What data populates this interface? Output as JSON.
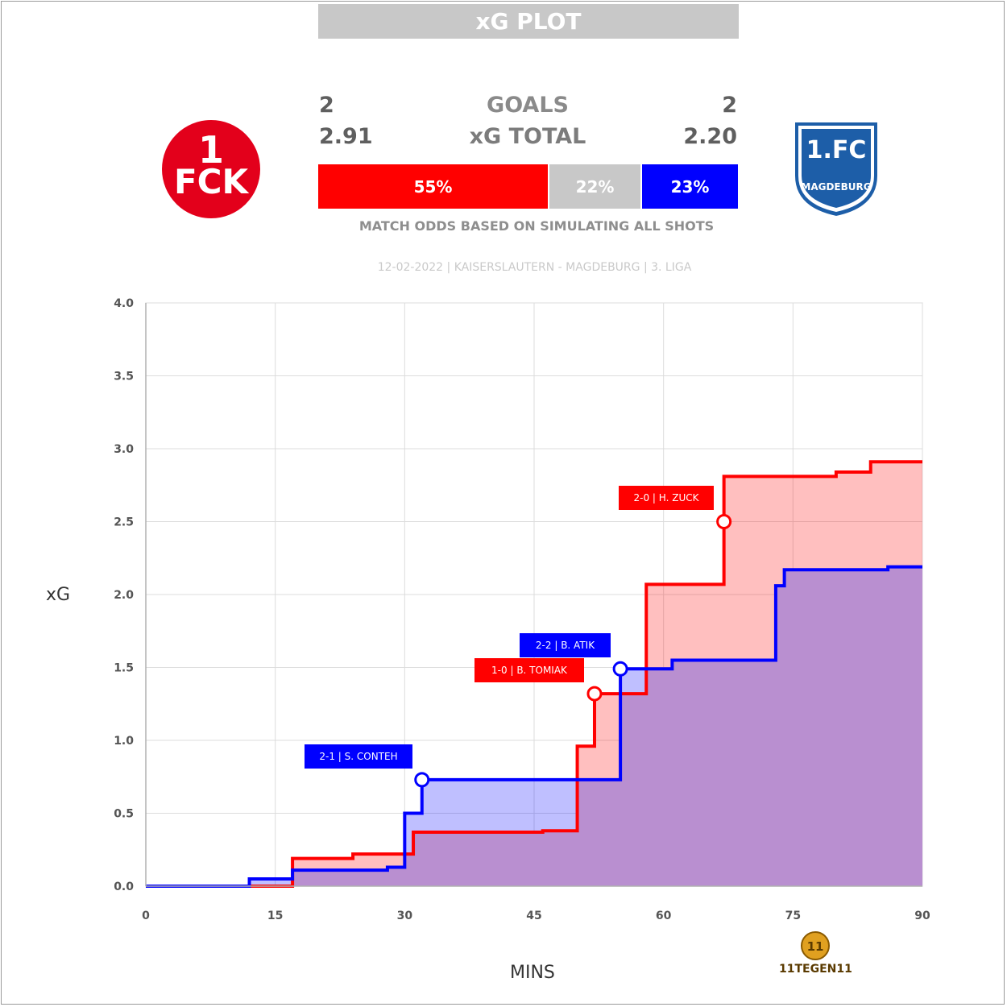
{
  "header": {
    "title": "xG PLOT",
    "home_goals": "2",
    "away_goals": "2",
    "goals_label": "GOALS",
    "home_xg": "2.91",
    "away_xg": "2.20",
    "xg_label": "xG TOTAL",
    "odds_note": "MATCH ODDS BASED ON SIMULATING ALL SHOTS",
    "match_info": "12-02-2022 | KAISERSLAUTERN - MAGDEBURG | 3. LIGA"
  },
  "odds": {
    "home_win": "55%",
    "draw": "22%",
    "away_win": "23%"
  },
  "logos": {
    "home_text_top": "1",
    "home_text_mid": "FCK",
    "away_text_top": "1.FC",
    "away_text_bottom": "MAGDEBURG",
    "brand_text": "11TEGEN11"
  },
  "colors": {
    "home": "#ff0000",
    "away": "#0000ff",
    "draw": "#c8c8c8",
    "home_fill": "rgba(255,0,0,0.25)",
    "away_fill": "rgba(0,0,255,0.25)",
    "overlap_fill": "#b98fd0"
  },
  "chart_data": {
    "type": "line",
    "xlabel": "MINS",
    "ylabel": "xG",
    "xlim": [
      0,
      90
    ],
    "ylim": [
      0,
      4
    ],
    "x_ticks": [
      0,
      15,
      30,
      45,
      60,
      75,
      90
    ],
    "y_ticks": [
      0.0,
      0.5,
      1.0,
      1.5,
      2.0,
      2.5,
      3.0,
      3.5,
      4.0
    ],
    "grid": true,
    "series": [
      {
        "team": "home",
        "steps": [
          [
            0,
            0
          ],
          [
            17,
            0.19
          ],
          [
            24,
            0.22
          ],
          [
            31,
            0.37
          ],
          [
            46,
            0.38
          ],
          [
            50,
            0.96
          ],
          [
            52,
            1.32
          ],
          [
            58,
            2.07
          ],
          [
            67,
            2.81
          ],
          [
            80,
            2.84
          ],
          [
            84,
            2.91
          ],
          [
            90,
            2.91
          ]
        ]
      },
      {
        "team": "away",
        "steps": [
          [
            0,
            0
          ],
          [
            12,
            0.05
          ],
          [
            17,
            0.11
          ],
          [
            28,
            0.13
          ],
          [
            30,
            0.5
          ],
          [
            32,
            0.73
          ],
          [
            55,
            1.49
          ],
          [
            61,
            1.55
          ],
          [
            73,
            2.06
          ],
          [
            74,
            2.17
          ],
          [
            86,
            2.19
          ],
          [
            90,
            2.19
          ]
        ]
      }
    ],
    "annotations": [
      {
        "label": "2-1 | S. CONTEH",
        "team": "away",
        "x": 32,
        "y": 0.73
      },
      {
        "label": "1-0 | B. TOMIAK",
        "team": "home",
        "x": 52,
        "y": 1.32
      },
      {
        "label": "2-2 | B. ATIK",
        "team": "away",
        "x": 55,
        "y": 1.49
      },
      {
        "label": "2-0 | H. ZUCK",
        "team": "home",
        "x": 67,
        "y": 2.5
      }
    ]
  }
}
